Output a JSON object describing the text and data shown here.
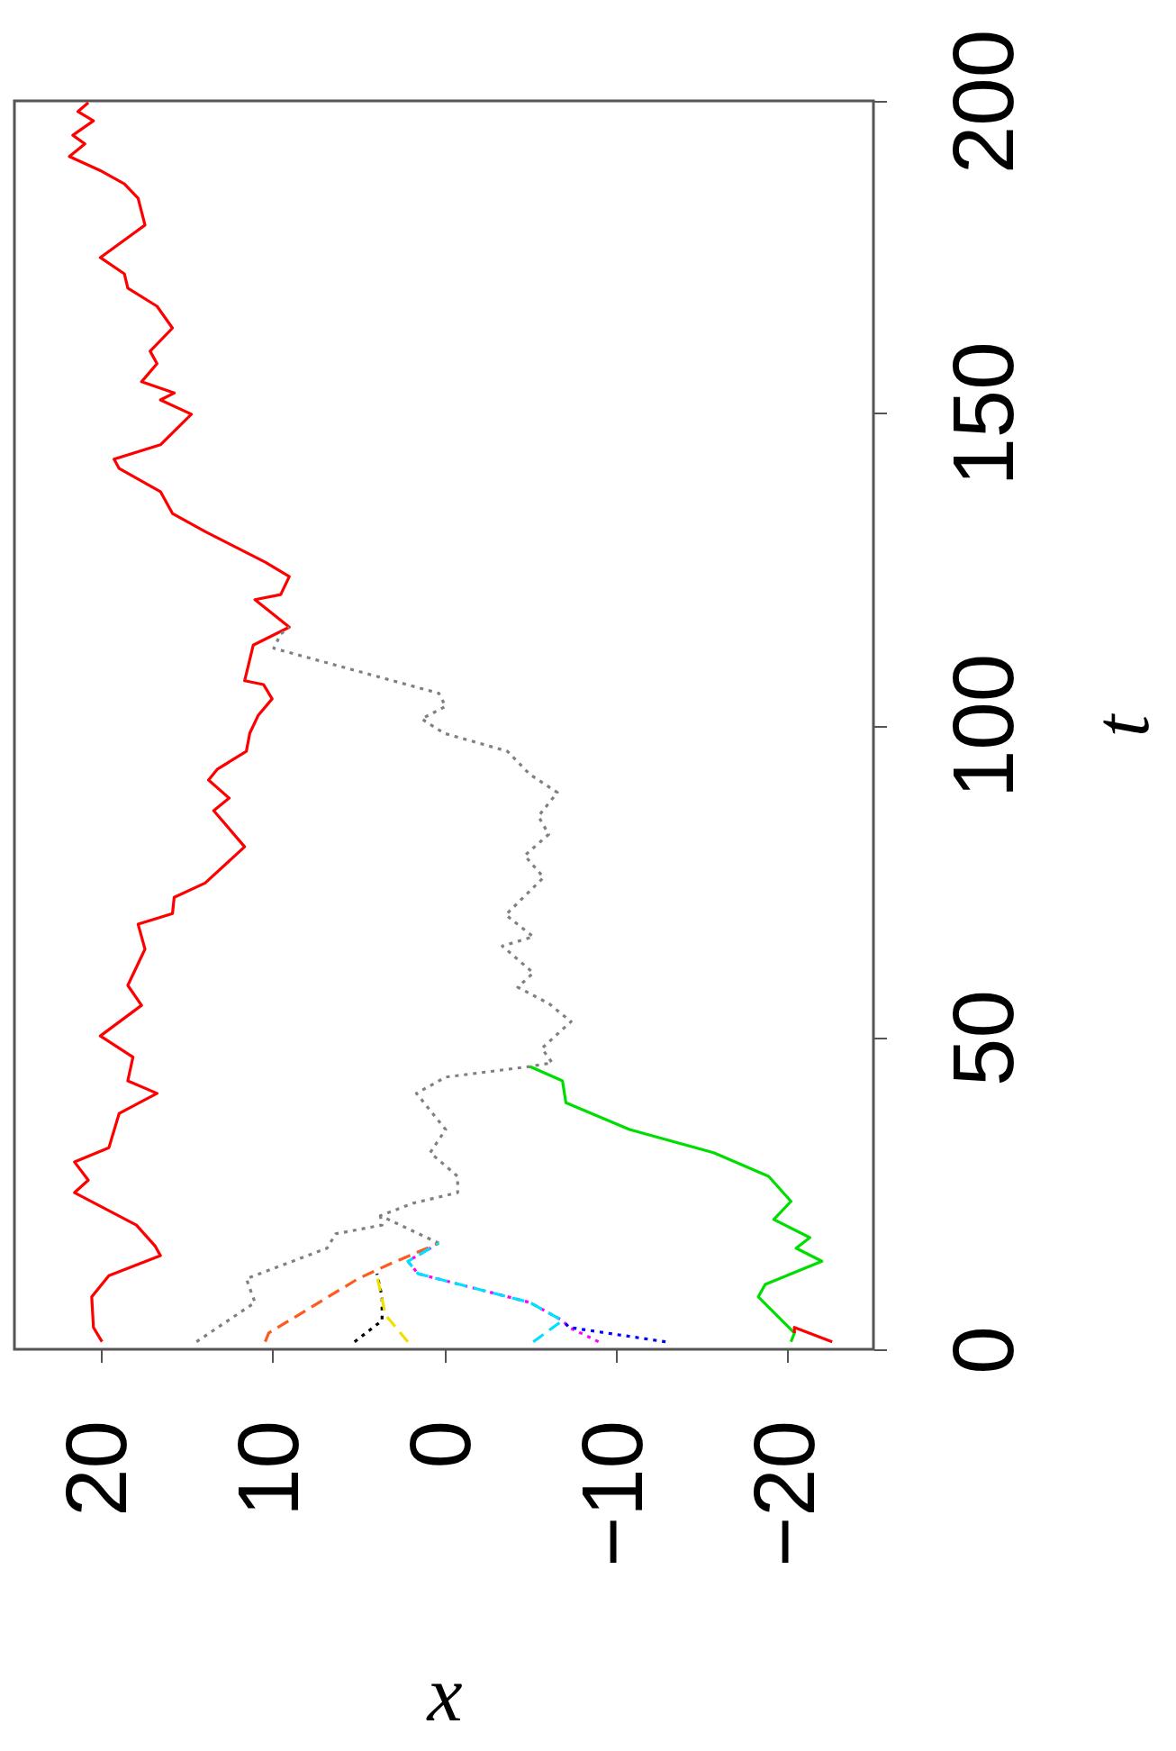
{
  "chart_data": {
    "type": "line",
    "xlabel": "x",
    "ylabel": "t",
    "xlim": [
      25,
      -25
    ],
    "ylim": [
      0,
      200
    ],
    "xticks": [
      20,
      10,
      0,
      -10,
      -20
    ],
    "yticks": [
      0,
      50,
      100,
      150,
      200
    ],
    "grid": false,
    "series": [
      {
        "color": "#ff0000",
        "line_style": "solid",
        "x": [
          19.9,
          20.4,
          20.5,
          19.5,
          16.5,
          16.8,
          17.9,
          21.5,
          20.7,
          21.5,
          19.5,
          18.9,
          16.7,
          18.4,
          18.1,
          20.0,
          17.6,
          18.4,
          17.4,
          17.8,
          15.8,
          15.7,
          13.9,
          11.6,
          13.4,
          12.5,
          13.7,
          13.2,
          11.5,
          11.3,
          10.8,
          10.0,
          10.5,
          11.6,
          11.1,
          9.0,
          11.0,
          9.5,
          9.0,
          10.4,
          13.9,
          15.8,
          16.5,
          18.9,
          19.2,
          16.5,
          14.7,
          16.5,
          15.7,
          17.6,
          16.7,
          17.1,
          15.8,
          16.7,
          18.4,
          18.6,
          20.0,
          17.4,
          17.8,
          18.6,
          19.9,
          21.8,
          20.9,
          21.6,
          20.4,
          21.3,
          20.7
        ],
        "values": [
          1.2,
          3.5,
          8.4,
          11.8,
          15.0,
          16.5,
          19.9,
          25.1,
          27.1,
          30.0,
          32.3,
          37.8,
          41.0,
          43.0,
          46.8,
          50.2,
          55.1,
          58.3,
          64.1,
          68.1,
          69.8,
          72.4,
          74.7,
          80.5,
          86.3,
          88.3,
          91.2,
          92.9,
          95.8,
          98.7,
          101.6,
          104.2,
          106.5,
          107.1,
          112.8,
          115.7,
          120.1,
          120.9,
          123.8,
          126.1,
          131.0,
          133.9,
          137.4,
          141.1,
          142.6,
          144.9,
          149.8,
          152.1,
          153.2,
          155.0,
          157.9,
          159.9,
          163.6,
          167.1,
          170.0,
          172.3,
          174.9,
          180.1,
          184.4,
          186.7,
          188.7,
          191.1,
          193.1,
          194.5,
          196.8,
          198.3,
          199.7
        ]
      },
      {
        "color": "#808080",
        "line_style": "dotted",
        "x": [
          0.3,
          3.7,
          1.8,
          -0.8,
          -0.8,
          0.8,
          -0.1,
          1.6,
          -0.1,
          -5.0,
          -6.3,
          -5.7,
          -7.4,
          -6.1,
          -4.3,
          -5.2,
          -3.4,
          -5.2,
          -3.6,
          -5.8,
          -4.7,
          -6.1,
          -5.5,
          -6.6,
          -5.0,
          -3.7,
          0.0,
          1.3,
          -0.1,
          0.3,
          9.9,
          9.5,
          9.0
        ],
        "values": [
          17.0,
          21.4,
          23.4,
          25.1,
          27.7,
          31.5,
          35.2,
          41.0,
          43.6,
          45.3,
          45.9,
          48.2,
          52.5,
          55.4,
          58.0,
          60.3,
          64.6,
          66.1,
          69.6,
          75.6,
          79.1,
          82.5,
          85.4,
          89.2,
          92.1,
          95.8,
          98.7,
          101.0,
          103.0,
          105.1,
          112.3,
          114.6,
          115.7
        ]
      },
      {
        "color": "#808080",
        "line_style": "dotted",
        "x": [
          14.4,
          11.0,
          11.5,
          6.8,
          6.3,
          3.6,
          3.7
        ],
        "values": [
          1.2,
          7.5,
          11.3,
          16.2,
          18.5,
          19.9,
          21.4
        ]
      },
      {
        "color": "#ff5a1e",
        "line_style": "dashed",
        "x": [
          10.4,
          10.2,
          5.0,
          3.2,
          0.3
        ],
        "values": [
          1.2,
          2.6,
          11.3,
          13.6,
          17.0
        ]
      },
      {
        "color": "#000000",
        "line_style": "dotted",
        "x": [
          5.2,
          3.6,
          3.6,
          3.9
        ],
        "values": [
          1.2,
          4.6,
          8.4,
          12.1
        ]
      },
      {
        "color": "#f0e000",
        "line_style": "dashed",
        "x": [
          2.1,
          3.4,
          3.9
        ],
        "values": [
          1.2,
          5.5,
          11.8
        ]
      },
      {
        "color": "#ff00ff",
        "line_style": "dotted",
        "x": [
          -9.0,
          -7.3,
          -6.9,
          -5.0,
          1.5,
          2.1,
          0.6
        ],
        "values": [
          1.2,
          3.5,
          4.6,
          7.5,
          12.1,
          14.1,
          16.5
        ]
      },
      {
        "color": "#00e0ff",
        "line_style": "dashed",
        "x": [
          -5.2,
          -6.9,
          -5.0,
          1.5,
          2.1,
          0.6,
          0.3
        ],
        "values": [
          1.2,
          4.6,
          7.5,
          12.1,
          14.1,
          16.5,
          17.0
        ]
      },
      {
        "color": "#0000ff",
        "line_style": "dotted",
        "x": [
          -12.9,
          -7.3,
          -6.9
        ],
        "values": [
          1.2,
          3.5,
          4.6
        ]
      },
      {
        "color": "#00dd00",
        "line_style": "solid",
        "x": [
          -20.2,
          -20.4,
          -18.3,
          -18.7,
          -22.0,
          -20.5,
          -21.3,
          -19.2,
          -20.2,
          -18.9,
          -15.7,
          -10.8,
          -7.1,
          -6.9,
          -5.0
        ],
        "values": [
          1.2,
          2.6,
          8.4,
          10.4,
          14.1,
          16.2,
          17.9,
          20.8,
          23.7,
          27.7,
          31.5,
          35.2,
          39.5,
          43.0,
          45.3
        ]
      },
      {
        "color": "#ff0000",
        "line_style": "solid",
        "x": [
          -22.6,
          -20.4,
          -20.4
        ],
        "values": [
          1.2,
          3.5,
          2.6
        ]
      }
    ]
  }
}
